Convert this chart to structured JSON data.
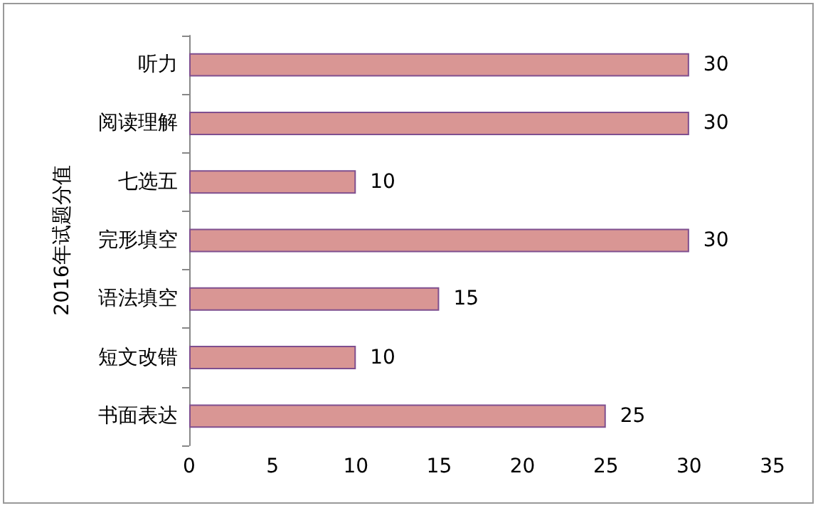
{
  "chart_data": {
    "type": "bar",
    "orientation": "horizontal",
    "ylabel": "2016年试题分值",
    "categories": [
      "听力",
      "阅读理解",
      "七选五",
      "完形填空",
      "语法填空",
      "短文改错",
      "书面表达"
    ],
    "values": [
      30,
      30,
      10,
      30,
      15,
      10,
      25
    ],
    "color": "#d99694",
    "xlim": [
      0,
      35
    ],
    "xticks": [
      0,
      5,
      10,
      15,
      20,
      25,
      30,
      35
    ],
    "grid": false,
    "data_labels": true
  }
}
